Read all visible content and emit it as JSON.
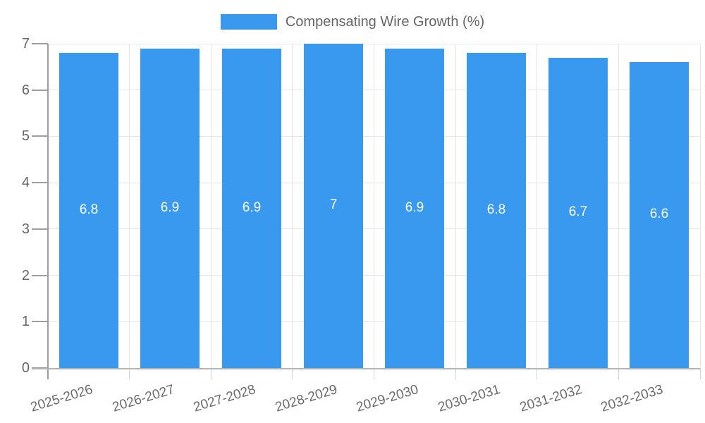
{
  "chart_data": {
    "type": "bar",
    "title": "Compensating Wire Growth (%)",
    "legend_position": "top",
    "categories": [
      "2025-2026",
      "2026-2027",
      "2027-2028",
      "2028-2029",
      "2029-2030",
      "2030-2031",
      "2031-2032",
      "2032-2033"
    ],
    "values": [
      6.8,
      6.9,
      6.9,
      7,
      6.9,
      6.8,
      6.7,
      6.6
    ],
    "value_labels": [
      "6.8",
      "6.9",
      "6.9",
      "7",
      "6.9",
      "6.8",
      "6.7",
      "6.6"
    ],
    "xlabel": "",
    "ylabel": "",
    "y_ticks": [
      0,
      1,
      2,
      3,
      4,
      5,
      6,
      7
    ],
    "ylim": [
      0,
      7
    ],
    "grid": true,
    "colors": {
      "bar": "#3999ee",
      "bar_label": "#ffffff",
      "tick_text": "#676767",
      "grid_line": "#e6e6e6",
      "x_axis_line": "#b3b3b3",
      "y_axis_line": "#9e9e9e",
      "minor_tick": "#d4d4d4"
    }
  }
}
